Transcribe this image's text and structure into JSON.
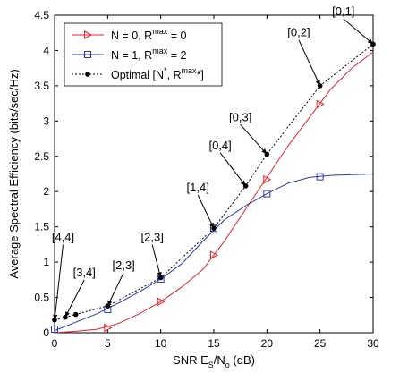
{
  "chart_data": {
    "type": "line",
    "xlabel": "SNR E_S/N_o (dB)",
    "ylabel": "Average Spectral Efficiency (bits/sec/Hz)",
    "xlim": [
      0,
      30
    ],
    "ylim": [
      0,
      4.5
    ],
    "xticks": [
      0,
      5,
      10,
      15,
      20,
      25,
      30
    ],
    "yticks": [
      0,
      0.5,
      1,
      1.5,
      2,
      2.5,
      3,
      3.5,
      4,
      4.5
    ],
    "xtick_labels": [
      "0",
      "5",
      "10",
      "15",
      "20",
      "25",
      "30"
    ],
    "ytick_labels": [
      "0",
      "0.5",
      "1",
      "1.5",
      "2",
      "2.5",
      "3",
      "3.5",
      "4",
      "4.5"
    ],
    "grid": false,
    "legend_position": "top-left",
    "series": [
      {
        "name": "N = 0, R^max = 0",
        "color": "#e8202a",
        "line_style": "solid",
        "marker": "triangle-right",
        "x": [
          0,
          2,
          4,
          6,
          8,
          10,
          12,
          14,
          16,
          18,
          20,
          22,
          24,
          26,
          28,
          30
        ],
        "y": [
          0.0,
          0.02,
          0.05,
          0.13,
          0.27,
          0.44,
          0.65,
          0.9,
          1.3,
          1.75,
          2.2,
          2.65,
          3.05,
          3.45,
          3.75,
          3.98
        ],
        "marker_x": [
          5,
          10,
          15,
          20,
          25
        ],
        "marker_y": [
          0.07,
          0.44,
          1.1,
          2.17,
          3.24
        ]
      },
      {
        "name": "N = 1, R^max = 2",
        "color": "#2b3aa8",
        "line_style": "solid",
        "marker": "square",
        "x": [
          0,
          2,
          4,
          6,
          8,
          10,
          12,
          14,
          16,
          18,
          20,
          22,
          24,
          26,
          28,
          30
        ],
        "y": [
          0.03,
          0.15,
          0.27,
          0.42,
          0.58,
          0.76,
          0.98,
          1.3,
          1.6,
          1.8,
          1.97,
          2.12,
          2.2,
          2.23,
          2.24,
          2.25
        ],
        "marker_x": [
          0,
          5,
          10,
          15,
          20,
          25
        ],
        "marker_y": [
          0.05,
          0.33,
          0.76,
          1.48,
          1.97,
          2.21
        ]
      },
      {
        "name": "Optimal [N^*, R^max*]",
        "color": "#000000",
        "line_style": "dotted",
        "marker": "filled-circle",
        "x": [
          0,
          1,
          2,
          5,
          10,
          15,
          18,
          20,
          25,
          30
        ],
        "y": [
          0.18,
          0.22,
          0.26,
          0.38,
          0.78,
          1.48,
          2.08,
          2.53,
          3.5,
          4.09
        ],
        "marker_x": [
          0,
          1,
          2,
          5,
          10,
          15,
          18,
          20,
          25,
          30
        ],
        "marker_y": [
          0.18,
          0.22,
          0.26,
          0.38,
          0.78,
          1.48,
          2.08,
          2.53,
          3.5,
          4.09
        ]
      }
    ],
    "annotations": [
      {
        "text": "[4,4]",
        "x": 0,
        "y": 0.18,
        "label_x": 0.8,
        "label_y": 1.3
      },
      {
        "text": "[3,4]",
        "x": 1,
        "y": 0.22,
        "label_x": 2.8,
        "label_y": 0.8
      },
      {
        "text": "[2,3]",
        "x": 5,
        "y": 0.38,
        "label_x": 6.5,
        "label_y": 0.9
      },
      {
        "text": "[2,3]",
        "x": 10,
        "y": 0.78,
        "label_x": 9.2,
        "label_y": 1.3
      },
      {
        "text": "[1,4]",
        "x": 15,
        "y": 1.48,
        "label_x": 13.5,
        "label_y": 2.0
      },
      {
        "text": "[0,4]",
        "x": 18,
        "y": 2.08,
        "label_x": 15.6,
        "label_y": 2.6
      },
      {
        "text": "[0,3]",
        "x": 20,
        "y": 2.53,
        "label_x": 17.5,
        "label_y": 3.0
      },
      {
        "text": "[0,2]",
        "x": 25,
        "y": 3.5,
        "label_x": 23.0,
        "label_y": 4.2
      },
      {
        "text": "[0,1]",
        "x": 30,
        "y": 4.09,
        "label_x": 27.2,
        "label_y": 4.5
      }
    ]
  },
  "legend": {
    "items": [
      {
        "prefix": "N = 0, R",
        "sup": "max",
        "suffix": " = 0"
      },
      {
        "prefix": "N = 1, R",
        "sup": "max",
        "suffix": " = 2"
      },
      {
        "prefix": "Optimal [N",
        "sup": "*",
        "mid": ", R",
        "sup2": "max",
        "suffix": "*]"
      }
    ]
  },
  "xlabel_parts": {
    "prefix": "SNR E",
    "sub1": "S",
    "mid": "/N",
    "sub2": "o",
    "suffix": " (dB)"
  }
}
